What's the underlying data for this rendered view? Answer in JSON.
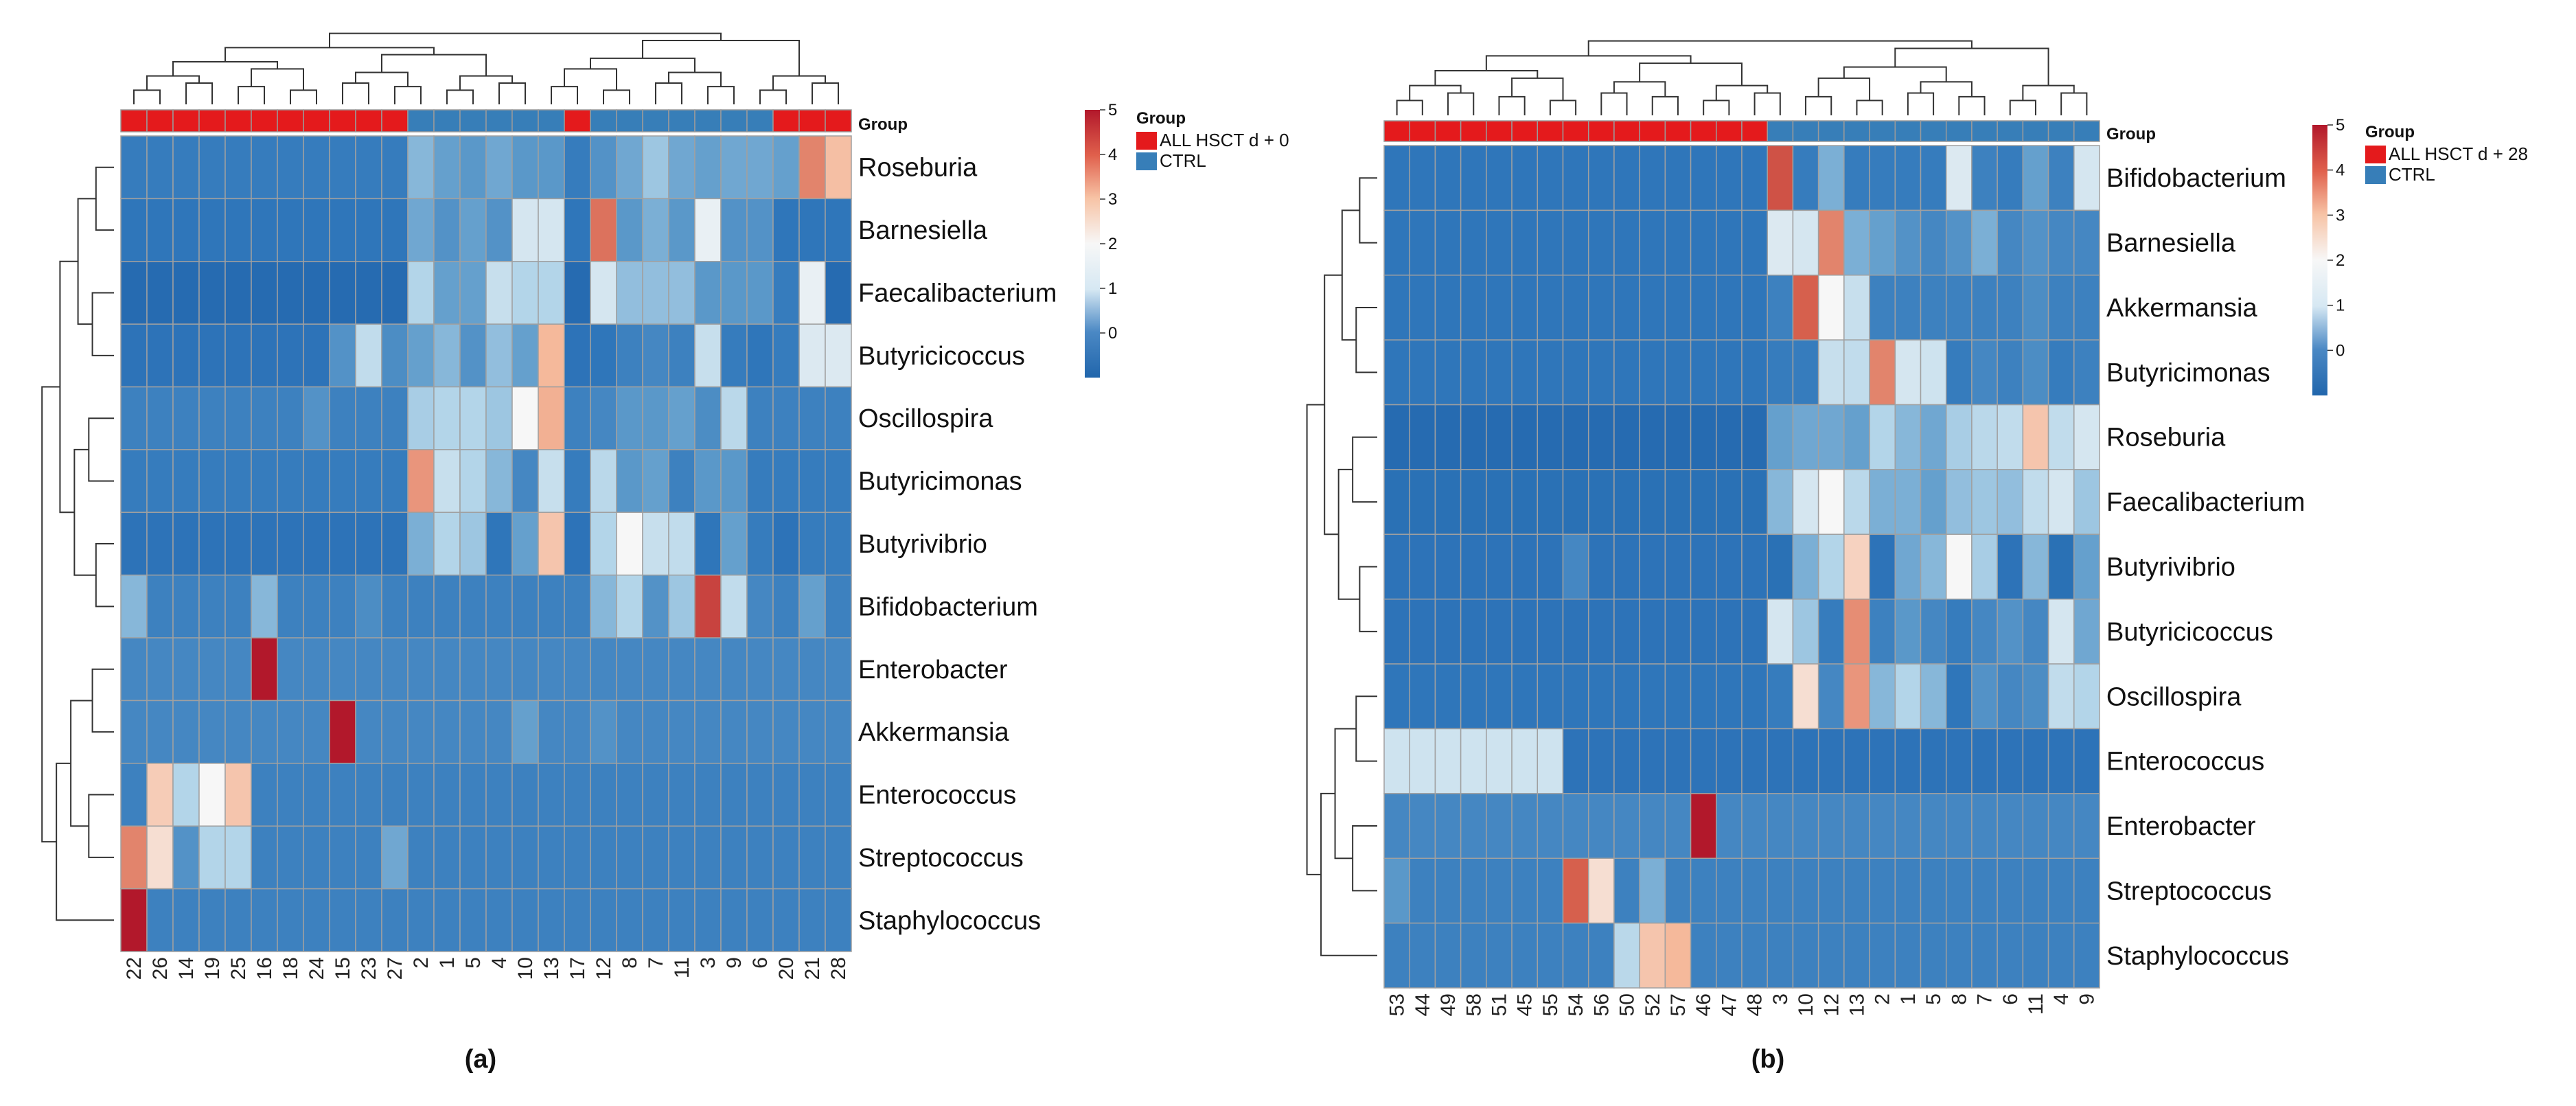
{
  "chart_data": [
    {
      "type": "heatmap",
      "caption": "(a)",
      "group_annotation_label": "Group",
      "legend": {
        "title": "Group",
        "entries": [
          {
            "label": "ALL HSCT d + 0",
            "color": "#e41a1c"
          },
          {
            "label": "CTRL",
            "color": "#377eb8"
          }
        ]
      },
      "colorbar": {
        "min": -1,
        "max": 5,
        "ticks": [
          "5",
          "4",
          "3",
          "2",
          "1",
          "0"
        ],
        "tick_values": [
          5,
          4,
          3,
          2,
          1,
          0
        ]
      },
      "columns": [
        "22",
        "26",
        "14",
        "19",
        "25",
        "16",
        "18",
        "24",
        "15",
        "23",
        "27",
        "2",
        "1",
        "5",
        "4",
        "10",
        "13",
        "17",
        "12",
        "8",
        "7",
        "11",
        "3",
        "9",
        "6",
        "20",
        "21",
        "28"
      ],
      "column_groups": [
        "ALL",
        "ALL",
        "ALL",
        "ALL",
        "ALL",
        "ALL",
        "ALL",
        "ALL",
        "ALL",
        "ALL",
        "ALL",
        "CTRL",
        "CTRL",
        "CTRL",
        "CTRL",
        "CTRL",
        "CTRL",
        "ALL",
        "CTRL",
        "CTRL",
        "CTRL",
        "CTRL",
        "CTRL",
        "CTRL",
        "CTRL",
        "ALL",
        "ALL",
        "ALL"
      ],
      "rows": [
        "Roseburia",
        "Barnesiella",
        "Faecalibacterium",
        "Butyricicoccus",
        "Oscillospira",
        "Butyricimonas",
        "Butyrivibrio",
        "Bifidobacterium",
        "Enterobacter",
        "Akkermansia",
        "Enterococcus",
        "Streptococcus",
        "Staphylococcus"
      ],
      "values": [
        [
          -0.3,
          -0.3,
          -0.3,
          -0.3,
          -0.3,
          -0.3,
          -0.3,
          -0.3,
          -0.3,
          -0.3,
          -0.3,
          0.6,
          0.3,
          0.2,
          0.4,
          0.2,
          0.2,
          -0.3,
          0.1,
          0.4,
          0.8,
          0.4,
          0.3,
          0.4,
          0.4,
          0.3,
          3.6,
          2.9
        ],
        [
          -0.4,
          -0.4,
          -0.4,
          -0.4,
          -0.4,
          -0.4,
          -0.4,
          -0.4,
          -0.4,
          -0.4,
          -0.4,
          0.4,
          0.1,
          0.3,
          0.1,
          1.5,
          1.5,
          -0.4,
          3.8,
          0.2,
          0.5,
          0.2,
          1.8,
          0.1,
          0.1,
          -0.4,
          -0.4,
          -0.4
        ],
        [
          -0.8,
          -0.8,
          -0.8,
          -0.8,
          -0.8,
          -0.8,
          -0.8,
          -0.8,
          -0.8,
          -0.8,
          -0.8,
          1.0,
          0.3,
          0.3,
          1.3,
          1.0,
          1.0,
          -0.8,
          1.5,
          0.7,
          0.7,
          0.7,
          0.2,
          0.2,
          0.2,
          -0.3,
          1.8,
          -0.8
        ],
        [
          -0.5,
          -0.5,
          -0.5,
          -0.5,
          -0.5,
          -0.5,
          -0.5,
          -0.5,
          0.1,
          1.2,
          0.0,
          0.3,
          0.6,
          0.1,
          0.7,
          0.3,
          3.0,
          -0.5,
          -0.4,
          -0.2,
          -0.1,
          -0.2,
          1.3,
          -0.3,
          -0.4,
          -0.3,
          1.6,
          1.6
        ],
        [
          -0.2,
          -0.2,
          -0.2,
          -0.2,
          -0.2,
          -0.2,
          -0.2,
          0.1,
          -0.2,
          -0.2,
          -0.2,
          0.9,
          1.0,
          1.0,
          0.8,
          2.0,
          3.1,
          -0.2,
          -0.1,
          0.2,
          0.2,
          0.3,
          0.0,
          1.1,
          -0.2,
          -0.2,
          -0.2,
          -0.2
        ],
        [
          -0.3,
          -0.3,
          -0.3,
          -0.3,
          -0.3,
          -0.3,
          -0.3,
          -0.3,
          -0.3,
          -0.3,
          -0.3,
          3.4,
          1.3,
          1.0,
          0.6,
          -0.1,
          1.3,
          -0.3,
          1.1,
          0.2,
          0.3,
          -0.2,
          0.2,
          0.2,
          -0.3,
          -0.3,
          -0.3,
          -0.3
        ],
        [
          -0.5,
          -0.5,
          -0.5,
          -0.5,
          -0.5,
          -0.5,
          -0.5,
          -0.5,
          -0.5,
          -0.5,
          -0.5,
          0.5,
          1.0,
          0.8,
          -0.4,
          0.3,
          2.8,
          -0.5,
          1.0,
          2.0,
          1.3,
          1.2,
          -0.4,
          0.3,
          -0.3,
          -0.5,
          -0.3,
          -0.3
        ],
        [
          0.6,
          -0.2,
          -0.2,
          -0.2,
          -0.2,
          0.6,
          -0.2,
          -0.2,
          -0.2,
          0.0,
          -0.2,
          -0.2,
          -0.2,
          -0.2,
          -0.2,
          -0.2,
          -0.2,
          -0.2,
          0.6,
          1.0,
          0.1,
          0.8,
          4.4,
          1.2,
          -0.1,
          -0.2,
          0.3,
          -0.2
        ],
        [
          -0.1,
          -0.1,
          -0.1,
          -0.1,
          -0.1,
          5.0,
          -0.1,
          -0.1,
          -0.1,
          -0.1,
          -0.1,
          -0.1,
          -0.1,
          -0.1,
          -0.1,
          -0.1,
          -0.1,
          -0.1,
          -0.1,
          -0.1,
          -0.1,
          -0.1,
          -0.1,
          -0.1,
          -0.1,
          -0.1,
          -0.1,
          -0.1
        ],
        [
          -0.1,
          -0.1,
          -0.1,
          -0.1,
          -0.1,
          -0.1,
          -0.1,
          -0.1,
          5.0,
          -0.1,
          -0.1,
          -0.1,
          -0.1,
          -0.1,
          -0.1,
          0.3,
          -0.1,
          -0.1,
          0.1,
          -0.1,
          -0.1,
          -0.1,
          -0.1,
          -0.1,
          -0.1,
          -0.1,
          -0.1,
          -0.1
        ],
        [
          -0.2,
          2.7,
          1.0,
          2.0,
          2.8,
          -0.2,
          -0.2,
          -0.2,
          -0.2,
          -0.2,
          -0.2,
          -0.2,
          -0.2,
          -0.2,
          -0.2,
          -0.2,
          -0.2,
          -0.2,
          -0.2,
          -0.2,
          -0.2,
          -0.2,
          -0.2,
          -0.2,
          -0.2,
          -0.2,
          -0.2,
          -0.2
        ],
        [
          3.6,
          2.4,
          0.1,
          1.0,
          1.0,
          -0.2,
          -0.2,
          -0.2,
          -0.2,
          -0.2,
          0.4,
          -0.2,
          -0.2,
          -0.2,
          -0.2,
          -0.2,
          -0.2,
          -0.2,
          -0.2,
          -0.2,
          -0.2,
          -0.2,
          -0.2,
          -0.2,
          -0.2,
          -0.2,
          -0.2,
          -0.2
        ],
        [
          5.0,
          -0.2,
          -0.2,
          -0.2,
          -0.2,
          -0.2,
          -0.2,
          -0.2,
          -0.2,
          -0.2,
          -0.2,
          -0.2,
          -0.2,
          -0.2,
          -0.2,
          -0.2,
          -0.2,
          -0.2,
          -0.2,
          -0.2,
          -0.2,
          -0.2,
          -0.2,
          -0.2,
          -0.2,
          -0.2,
          -0.2,
          -0.2
        ]
      ]
    },
    {
      "type": "heatmap",
      "caption": "(b)",
      "group_annotation_label": "Group",
      "legend": {
        "title": "Group",
        "entries": [
          {
            "label": "ALL HSCT d + 28",
            "color": "#e41a1c"
          },
          {
            "label": "CTRL",
            "color": "#377eb8"
          }
        ]
      },
      "colorbar": {
        "min": -1,
        "max": 5,
        "ticks": [
          "5",
          "4",
          "3",
          "2",
          "1",
          "0"
        ],
        "tick_values": [
          5,
          4,
          3,
          2,
          1,
          0
        ]
      },
      "columns": [
        "53",
        "44",
        "49",
        "58",
        "51",
        "45",
        "55",
        "54",
        "56",
        "50",
        "52",
        "57",
        "46",
        "47",
        "48",
        "3",
        "10",
        "12",
        "13",
        "2",
        "1",
        "5",
        "8",
        "7",
        "6",
        "11",
        "4",
        "9"
      ],
      "column_groups": [
        "ALL",
        "ALL",
        "ALL",
        "ALL",
        "ALL",
        "ALL",
        "ALL",
        "ALL",
        "ALL",
        "ALL",
        "ALL",
        "ALL",
        "ALL",
        "ALL",
        "ALL",
        "CTRL",
        "CTRL",
        "CTRL",
        "CTRL",
        "CTRL",
        "CTRL",
        "CTRL",
        "CTRL",
        "CTRL",
        "CTRL",
        "CTRL",
        "CTRL",
        "CTRL"
      ],
      "rows": [
        "Bifidobacterium",
        "Barnesiella",
        "Akkermansia",
        "Butyricimonas",
        "Roseburia",
        "Faecalibacterium",
        "Butyrivibrio",
        "Butyricicoccus",
        "Oscillospira",
        "Enterococcus",
        "Enterobacter",
        "Streptococcus",
        "Staphylococcus"
      ],
      "values": [
        [
          -0.4,
          -0.4,
          -0.4,
          -0.4,
          -0.4,
          -0.4,
          -0.4,
          -0.4,
          -0.4,
          -0.4,
          -0.4,
          -0.4,
          -0.4,
          -0.4,
          -0.4,
          4.2,
          -0.3,
          0.5,
          -0.3,
          -0.3,
          -0.3,
          -0.3,
          1.6,
          -0.2,
          -0.3,
          0.3,
          -0.2,
          1.5
        ],
        [
          -0.4,
          -0.4,
          -0.4,
          -0.4,
          -0.4,
          -0.4,
          -0.4,
          -0.4,
          -0.4,
          -0.4,
          -0.4,
          -0.4,
          -0.4,
          -0.4,
          -0.4,
          1.6,
          1.5,
          3.6,
          0.5,
          0.3,
          0.1,
          -0.1,
          0.1,
          0.5,
          -0.1,
          0.1,
          -0.1,
          -0.1
        ],
        [
          -0.4,
          -0.4,
          -0.4,
          -0.4,
          -0.4,
          -0.4,
          -0.4,
          -0.4,
          -0.4,
          -0.4,
          -0.4,
          -0.4,
          -0.4,
          -0.4,
          -0.4,
          -0.2,
          4.0,
          2.0,
          1.3,
          -0.2,
          -0.2,
          -0.2,
          -0.2,
          -0.2,
          -0.2,
          0.0,
          -0.2,
          -0.2
        ],
        [
          -0.4,
          -0.4,
          -0.4,
          -0.4,
          -0.4,
          -0.4,
          -0.4,
          -0.4,
          -0.4,
          -0.4,
          -0.4,
          -0.4,
          -0.4,
          -0.4,
          -0.4,
          -0.3,
          -0.3,
          1.3,
          1.2,
          3.6,
          1.5,
          1.4,
          -0.3,
          -0.1,
          -0.2,
          0.0,
          -0.3,
          -0.2
        ],
        [
          -0.8,
          -0.8,
          -0.8,
          -0.8,
          -0.8,
          -0.8,
          -0.8,
          -0.8,
          -0.8,
          -0.8,
          -0.8,
          -0.8,
          -0.8,
          -0.8,
          -0.8,
          0.3,
          0.4,
          0.4,
          0.3,
          1.0,
          0.6,
          0.4,
          0.9,
          1.1,
          1.2,
          2.8,
          1.2,
          1.5
        ],
        [
          -0.6,
          -0.6,
          -0.6,
          -0.6,
          -0.6,
          -0.6,
          -0.6,
          -0.6,
          -0.6,
          -0.6,
          -0.6,
          -0.6,
          -0.6,
          -0.6,
          -0.6,
          0.6,
          1.5,
          2.0,
          1.1,
          0.5,
          0.5,
          0.3,
          0.7,
          0.8,
          0.7,
          1.2,
          1.5,
          0.8
        ],
        [
          -0.5,
          -0.5,
          -0.5,
          -0.5,
          -0.5,
          -0.5,
          -0.5,
          -0.1,
          -0.5,
          -0.5,
          -0.5,
          -0.5,
          -0.5,
          -0.5,
          -0.5,
          -0.6,
          0.5,
          1.0,
          2.6,
          -0.5,
          0.4,
          0.6,
          2.0,
          0.9,
          -0.5,
          0.6,
          -0.6,
          0.3
        ],
        [
          -0.5,
          -0.5,
          -0.5,
          -0.5,
          -0.5,
          -0.5,
          -0.5,
          -0.5,
          -0.5,
          -0.5,
          -0.5,
          -0.5,
          -0.5,
          -0.5,
          -0.5,
          1.5,
          0.8,
          -0.3,
          3.5,
          -0.2,
          0.2,
          -0.1,
          -0.3,
          -0.1,
          0.1,
          -0.1,
          1.5,
          0.4
        ],
        [
          -0.4,
          -0.4,
          -0.4,
          -0.4,
          -0.4,
          -0.4,
          -0.4,
          -0.4,
          -0.4,
          -0.4,
          -0.4,
          -0.4,
          -0.4,
          -0.4,
          -0.4,
          -0.3,
          2.4,
          -0.1,
          3.4,
          0.6,
          1.0,
          0.6,
          -0.4,
          0.1,
          -0.1,
          0.0,
          1.2,
          1.0
        ],
        [
          1.4,
          1.4,
          1.4,
          1.4,
          1.4,
          1.4,
          1.4,
          -0.5,
          -0.5,
          -0.5,
          -0.5,
          -0.5,
          -0.5,
          -0.5,
          -0.5,
          -0.5,
          -0.5,
          -0.5,
          -0.5,
          -0.5,
          -0.5,
          -0.5,
          -0.5,
          -0.5,
          -0.5,
          -0.5,
          -0.5,
          -0.5
        ],
        [
          -0.1,
          -0.1,
          -0.1,
          -0.1,
          -0.1,
          -0.1,
          -0.1,
          -0.1,
          -0.1,
          -0.1,
          -0.1,
          -0.1,
          5.0,
          -0.1,
          -0.1,
          -0.1,
          -0.1,
          -0.1,
          -0.1,
          -0.1,
          -0.1,
          -0.1,
          -0.1,
          -0.1,
          -0.1,
          -0.1,
          -0.1,
          -0.1
        ],
        [
          0.2,
          -0.2,
          -0.2,
          -0.2,
          -0.2,
          -0.2,
          -0.2,
          4.0,
          2.4,
          -0.2,
          0.5,
          -0.2,
          -0.2,
          -0.2,
          -0.2,
          -0.2,
          -0.2,
          -0.2,
          -0.2,
          -0.2,
          -0.2,
          -0.2,
          -0.2,
          -0.2,
          -0.2,
          -0.2,
          -0.2,
          -0.2
        ],
        [
          -0.2,
          -0.2,
          -0.2,
          -0.2,
          -0.2,
          -0.2,
          -0.2,
          -0.2,
          -0.2,
          1.1,
          2.8,
          3.0,
          -0.2,
          -0.2,
          -0.2,
          -0.2,
          -0.2,
          -0.2,
          -0.2,
          -0.2,
          -0.2,
          -0.2,
          -0.2,
          -0.2,
          -0.2,
          -0.2,
          -0.2,
          -0.2
        ]
      ]
    }
  ]
}
